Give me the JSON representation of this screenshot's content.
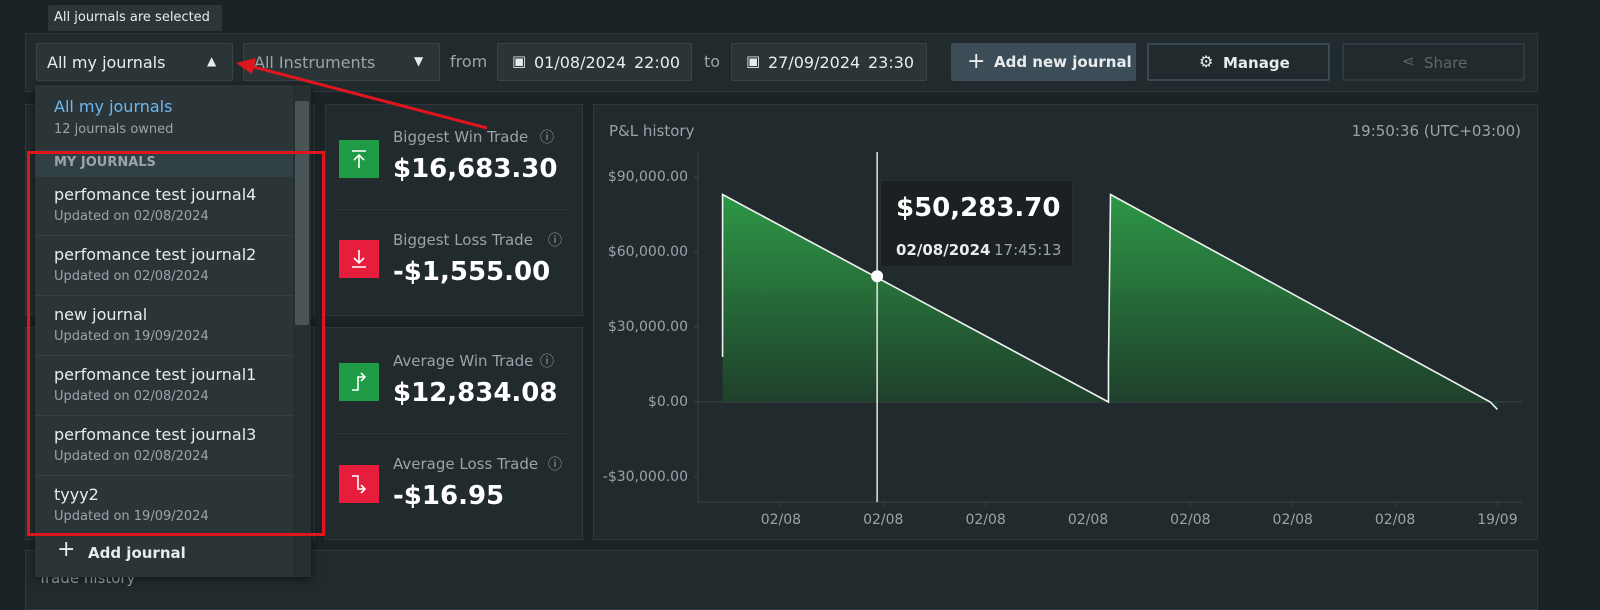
{
  "tooltip": "All journals are selected",
  "toolbar": {
    "journal_select": "All my journals",
    "instrument_select": "All Instruments",
    "from_label": "from",
    "from_date": "01/08/2024",
    "from_time": "22:00",
    "to_label": "to",
    "to_date": "27/09/2024",
    "to_time": "23:30",
    "add_button": "Add new journal",
    "manage_button": "Manage",
    "share_button": "Share"
  },
  "dropdown": {
    "title": "All my journals",
    "subtitle": "12 journals owned",
    "section": "MY JOURNALS",
    "items": [
      {
        "name": "perfomance test journal4",
        "updated": "Updated on 02/08/2024"
      },
      {
        "name": "perfomance test journal2",
        "updated": "Updated on 02/08/2024"
      },
      {
        "name": "new journal",
        "updated": "Updated on 19/09/2024"
      },
      {
        "name": "perfomance test journal1",
        "updated": "Updated on 02/08/2024"
      },
      {
        "name": "perfomance test journal3",
        "updated": "Updated on 02/08/2024"
      },
      {
        "name": "tyyy2",
        "updated": "Updated on 19/09/2024"
      }
    ],
    "footer": "Add journal"
  },
  "stats": [
    {
      "label": "Biggest Win Trade",
      "value": "$16,683.30"
    },
    {
      "label": "Biggest Loss Trade",
      "value": "-$1,555.00"
    },
    {
      "label": "Average Win Trade",
      "value": "$12,834.08"
    },
    {
      "label": "Average Loss Trade",
      "value": "-$16.95"
    }
  ],
  "bottom_panel": "Trade history",
  "chart_data": {
    "type": "area",
    "title": "P&L history",
    "subtitle": "19:50:36 (UTC+03:00)",
    "color": "#2e9e48",
    "ylim": [
      -40000,
      100000
    ],
    "yticks": [
      {
        "value": -30000,
        "label": "-$30,000.00"
      },
      {
        "value": 0,
        "label": "$0.00"
      },
      {
        "value": 30000,
        "label": "$30,000.00"
      },
      {
        "value": 60000,
        "label": "$60,000.00"
      },
      {
        "value": 90000,
        "label": "$90,000.00"
      }
    ],
    "xlim": [
      0.19,
      8.24
    ],
    "xticks": [
      {
        "value": 1,
        "label": "02/08"
      },
      {
        "value": 2,
        "label": "02/08"
      },
      {
        "value": 3,
        "label": "02/08"
      },
      {
        "value": 4,
        "label": "02/08"
      },
      {
        "value": 5,
        "label": "02/08"
      },
      {
        "value": 6,
        "label": "02/08"
      },
      {
        "value": 7,
        "label": "02/08"
      },
      {
        "value": 8,
        "label": "19/09"
      }
    ],
    "x": [
      0.43,
      0.43,
      4.2,
      4.2,
      4.22,
      7.93,
      8.0
    ],
    "values": [
      18000,
      83000,
      0,
      15000,
      83000,
      0,
      -3000
    ],
    "hover": {
      "x": 1.94,
      "value": 50283.7,
      "value_label": "$50,283.70",
      "date": "02/08/2024",
      "time": "17:45:13"
    }
  }
}
